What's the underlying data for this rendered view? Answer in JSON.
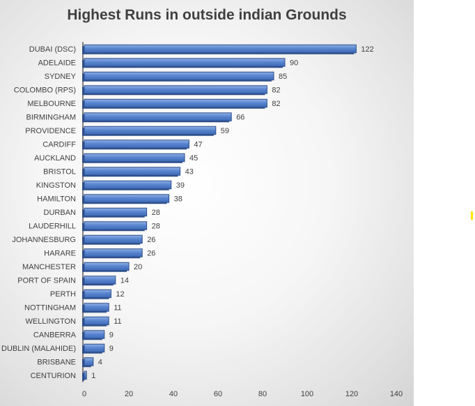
{
  "chart_data": {
    "type": "bar",
    "orientation": "horizontal",
    "title": "Highest Runs in outside indian Grounds",
    "xlabel": "",
    "ylabel": "",
    "categories": [
      "DUBAI (DSC)",
      "ADELAIDE",
      "SYDNEY",
      "COLOMBO (RPS)",
      "MELBOURNE",
      "BIRMINGHAM",
      "PROVIDENCE",
      "CARDIFF",
      "AUCKLAND",
      "BRISTOL",
      "KINGSTON",
      "HAMILTON",
      "DURBAN",
      "LAUDERHILL",
      "JOHANNESBURG",
      "HARARE",
      "MANCHESTER",
      "PORT OF SPAIN",
      "PERTH",
      "NOTTINGHAM",
      "WELLINGTON",
      "CANBERRA",
      "DUBLIN (MALAHIDE)",
      "BRISBANE",
      "CENTURION"
    ],
    "values": [
      122,
      90,
      85,
      82,
      82,
      66,
      59,
      47,
      45,
      43,
      39,
      38,
      28,
      28,
      26,
      26,
      20,
      14,
      12,
      11,
      11,
      9,
      9,
      4,
      1
    ],
    "xlim": [
      0,
      140
    ],
    "x_ticks": [
      0,
      20,
      40,
      60,
      80,
      100,
      120,
      140
    ],
    "grid": false,
    "legend": "none",
    "data_labels": true,
    "bar_color": "#4a76c2",
    "bar_edge_color": "#2e4f8a"
  }
}
